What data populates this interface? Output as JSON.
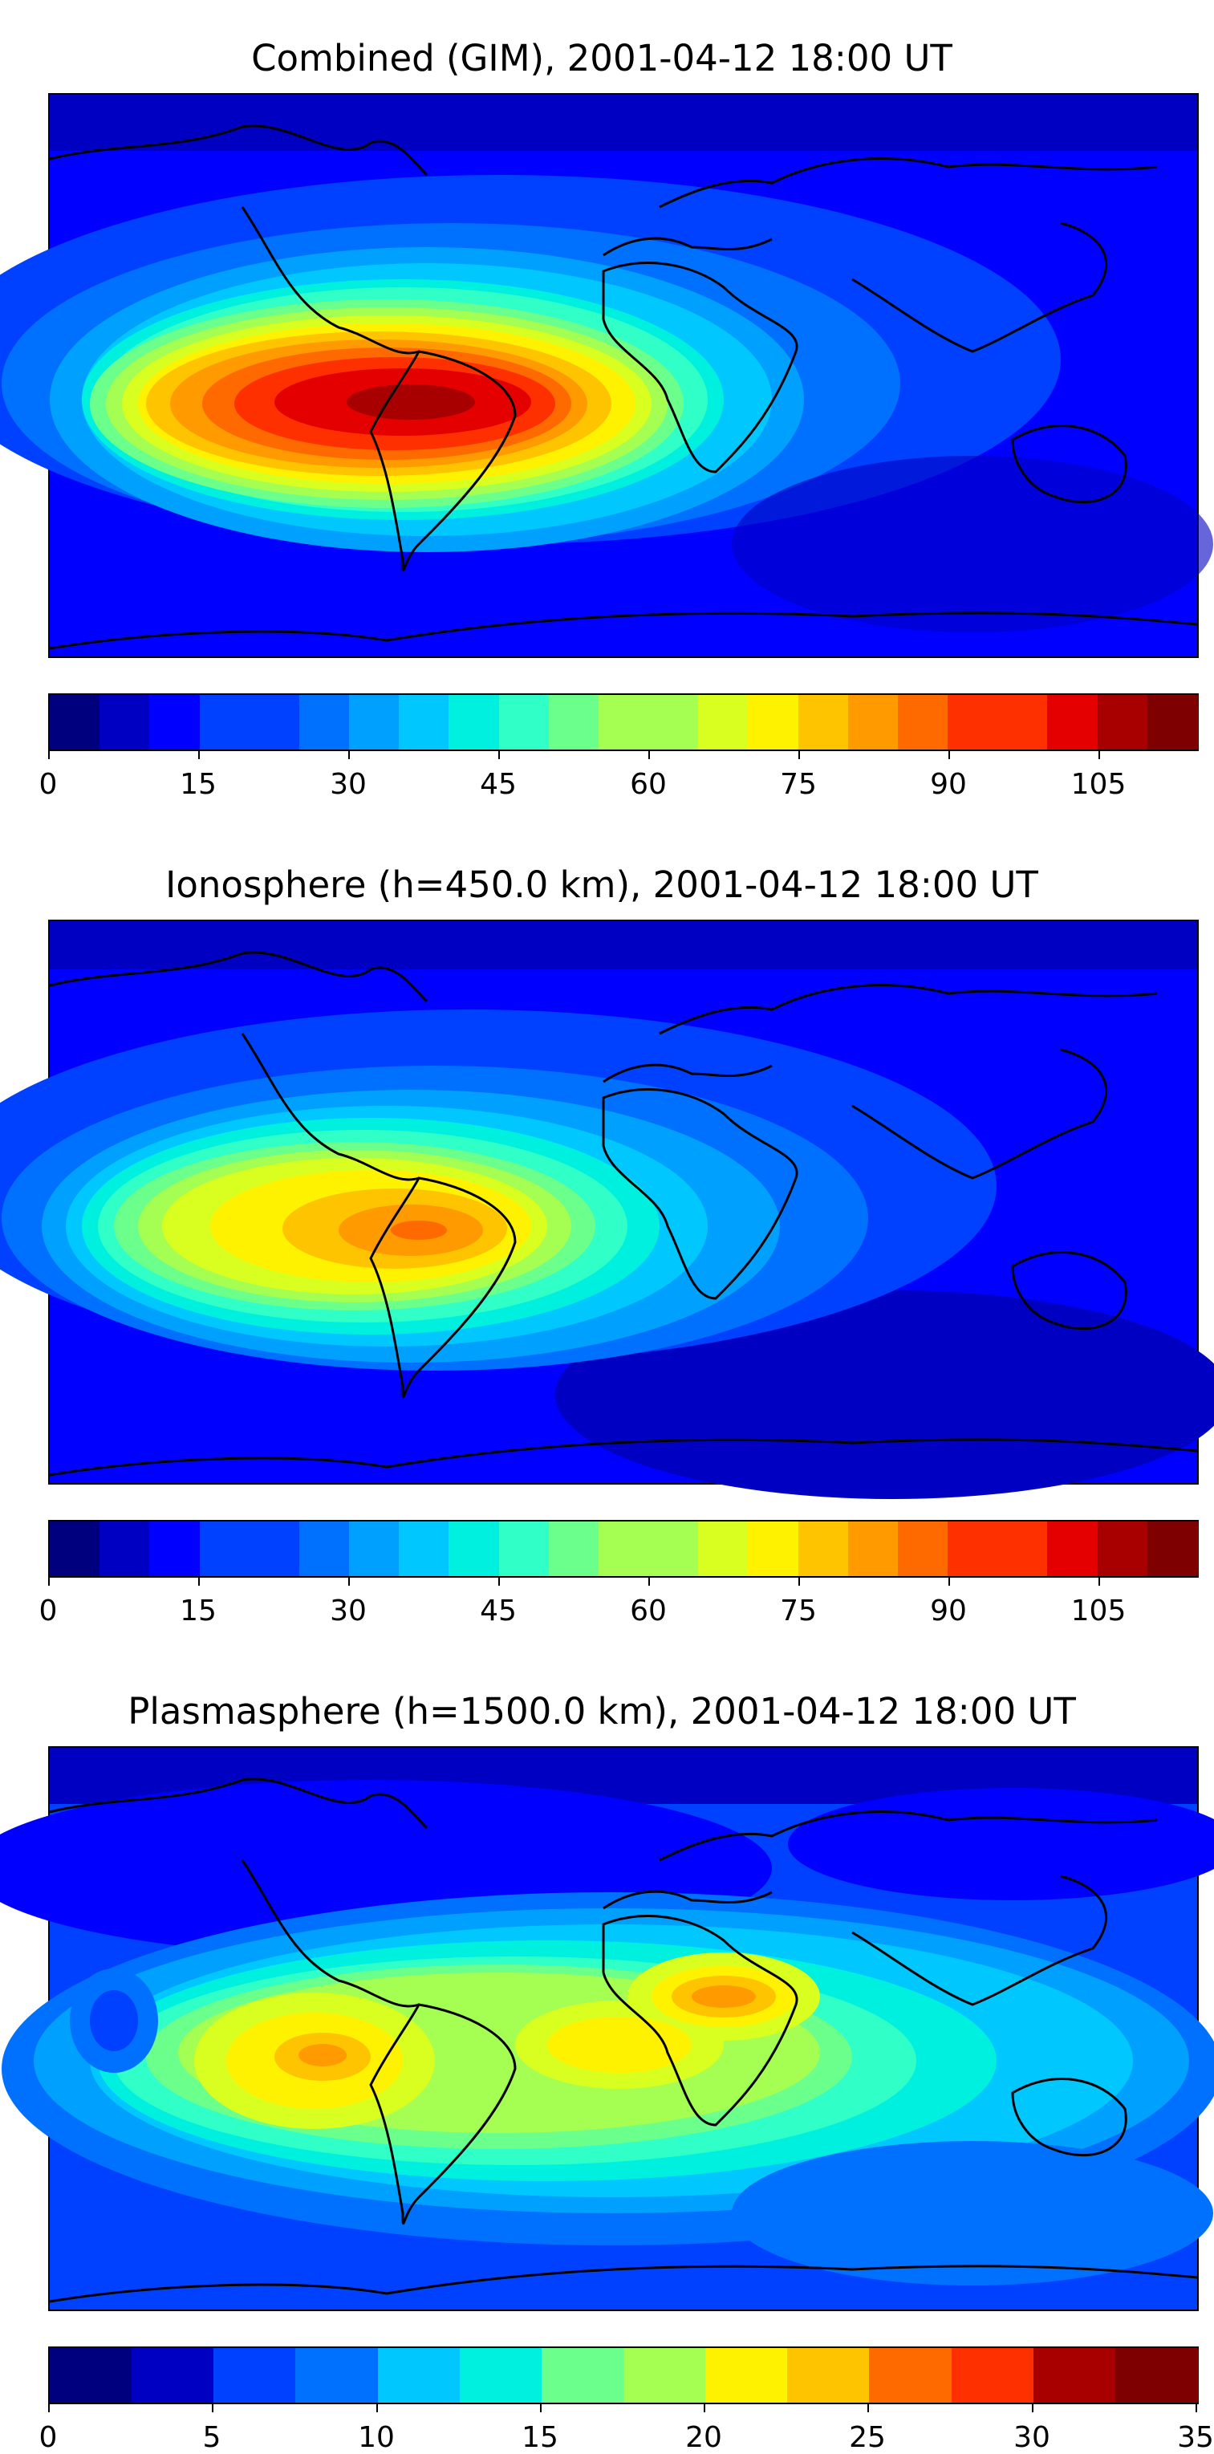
{
  "colormap": [
    "#00007f",
    "#0000c2",
    "#0000ff",
    "#0040ff",
    "#0070ff",
    "#00a0ff",
    "#00c8ff",
    "#00f0e0",
    "#30ffc7",
    "#6bff8b",
    "#a4ff52",
    "#d8ff1f",
    "#fff200",
    "#ffc400",
    "#ff9a00",
    "#ff6a00",
    "#ff3000",
    "#e50000",
    "#a80000",
    "#7f0000"
  ],
  "coastline_color": "#000000",
  "panels": [
    {
      "title": "Combined (GIM), 2001-04-12 18:00 UT",
      "colorbar": {
        "min": 0,
        "max": 115,
        "levels": 23,
        "ticks": [
          "0",
          "15",
          "30",
          "45",
          "60",
          "75",
          "90",
          "105"
        ]
      }
    },
    {
      "title": "Ionosphere  (h=450.0 km), 2001-04-12 18:00 UT",
      "colorbar": {
        "min": 0,
        "max": 115,
        "levels": 23,
        "ticks": [
          "0",
          "15",
          "30",
          "45",
          "60",
          "75",
          "90",
          "105"
        ]
      }
    },
    {
      "title": "Plasmasphere (h=1500.0 km), 2001-04-12 18:00 UT",
      "colorbar": {
        "min": 0,
        "max": 35,
        "levels": 14,
        "ticks": [
          "0",
          "5",
          "10",
          "15",
          "20",
          "25",
          "30",
          "35"
        ]
      }
    }
  ]
}
